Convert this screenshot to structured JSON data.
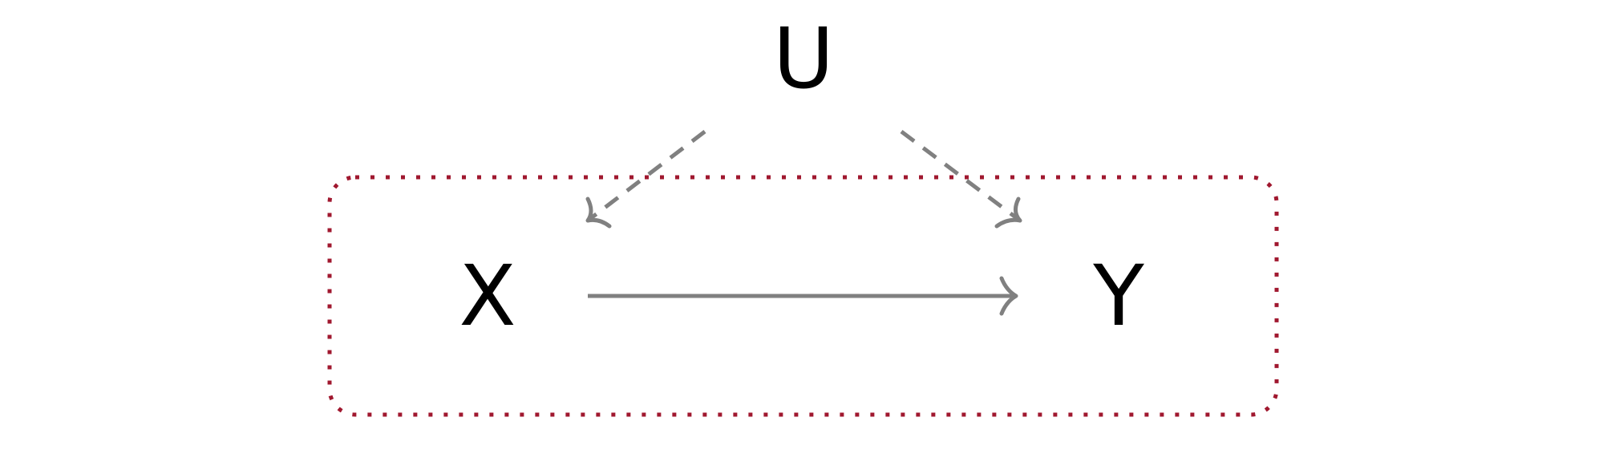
{
  "diagram": {
    "nodes": {
      "u": {
        "label": "U"
      },
      "x": {
        "label": "X"
      },
      "y": {
        "label": "Y"
      }
    },
    "edges": [
      {
        "from": "U",
        "to": "X",
        "style": "dashed"
      },
      {
        "from": "U",
        "to": "Y",
        "style": "dashed"
      },
      {
        "from": "X",
        "to": "Y",
        "style": "solid"
      }
    ],
    "grouping": {
      "members": [
        "X",
        "Y"
      ],
      "border_style": "dotted"
    },
    "colors": {
      "text": "#000000",
      "edge": "#808080",
      "group_border": "#a0182f",
      "background": "#ffffff"
    }
  }
}
